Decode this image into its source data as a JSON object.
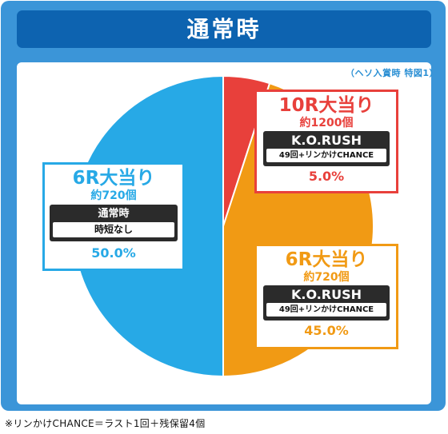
{
  "title": "通常時",
  "source_note": "（ヘソ入賞時 特図1）",
  "footnote": "※リンかけCHANCE＝ラスト1回＋残保留4個",
  "colors": {
    "red": "#e8403b",
    "orange": "#f19a14",
    "blue": "#27a9e6"
  },
  "chart_data": {
    "type": "pie",
    "slices": [
      {
        "label": "10R大当り",
        "sub": "約1200個",
        "mode": "K.O.RUSH",
        "detail": "49回+リンかけCHANCE",
        "percent": "5.0%",
        "value": 5.0,
        "color": "#e8403b"
      },
      {
        "label": "6R大当り",
        "sub": "約720個",
        "mode": "K.O.RUSH",
        "detail": "49回+リンかけCHANCE",
        "percent": "45.0%",
        "value": 45.0,
        "color": "#f19a14"
      },
      {
        "label": "6R大当り",
        "sub": "約720個",
        "mode": "通常時",
        "detail": "時短なし",
        "percent": "50.0%",
        "value": 50.0,
        "color": "#27a9e6"
      }
    ]
  }
}
